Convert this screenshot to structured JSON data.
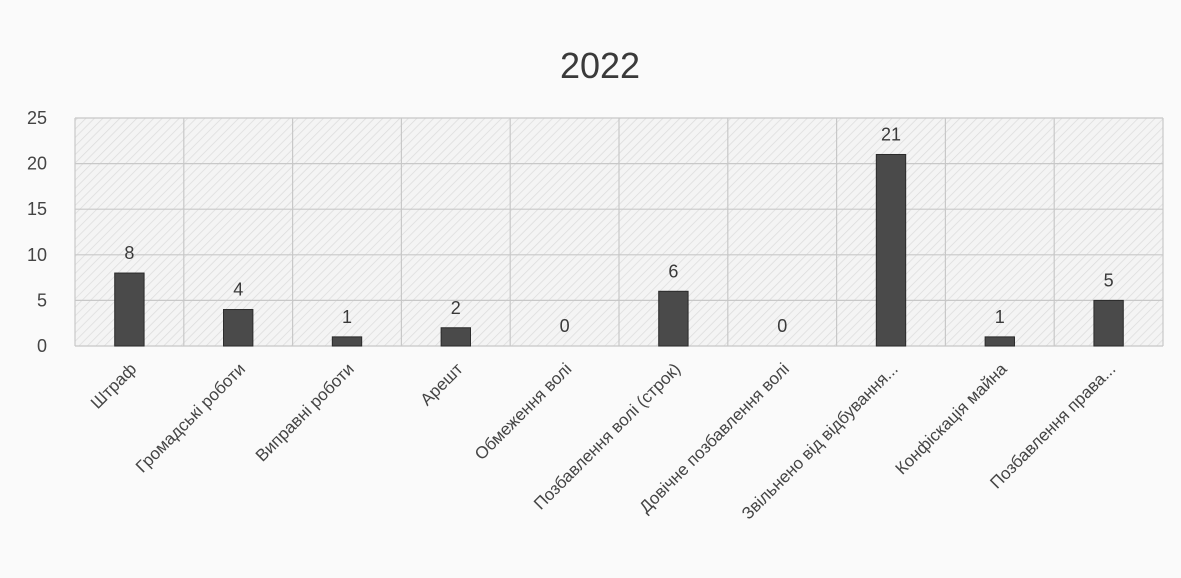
{
  "chart_data": {
    "type": "bar",
    "title": "2022",
    "categories": [
      "Штраф",
      "Громадські роботи",
      "Виправні роботи",
      "Арешт",
      "Обмеження волі",
      "Позбавлення волі (строк)",
      "Довічне позбавлення волі",
      "Звільнено від відбування...",
      "Конфіскація майна",
      "Позбавлення права..."
    ],
    "values": [
      8,
      4,
      1,
      2,
      0,
      6,
      0,
      21,
      1,
      5
    ],
    "data_labels": [
      "8",
      "4",
      "1",
      "2",
      "0",
      "6",
      "0",
      "21",
      "1",
      "5"
    ],
    "ylim": [
      0,
      25
    ],
    "yticks": [
      0,
      5,
      10,
      15,
      20,
      25
    ],
    "ytick_labels": [
      "0",
      "5",
      "10",
      "15",
      "20",
      "25"
    ],
    "grid": true,
    "legend": "none",
    "colors": {
      "bar": "#4a4a4a",
      "grid": "#c8c8c8",
      "text": "#444444"
    }
  }
}
